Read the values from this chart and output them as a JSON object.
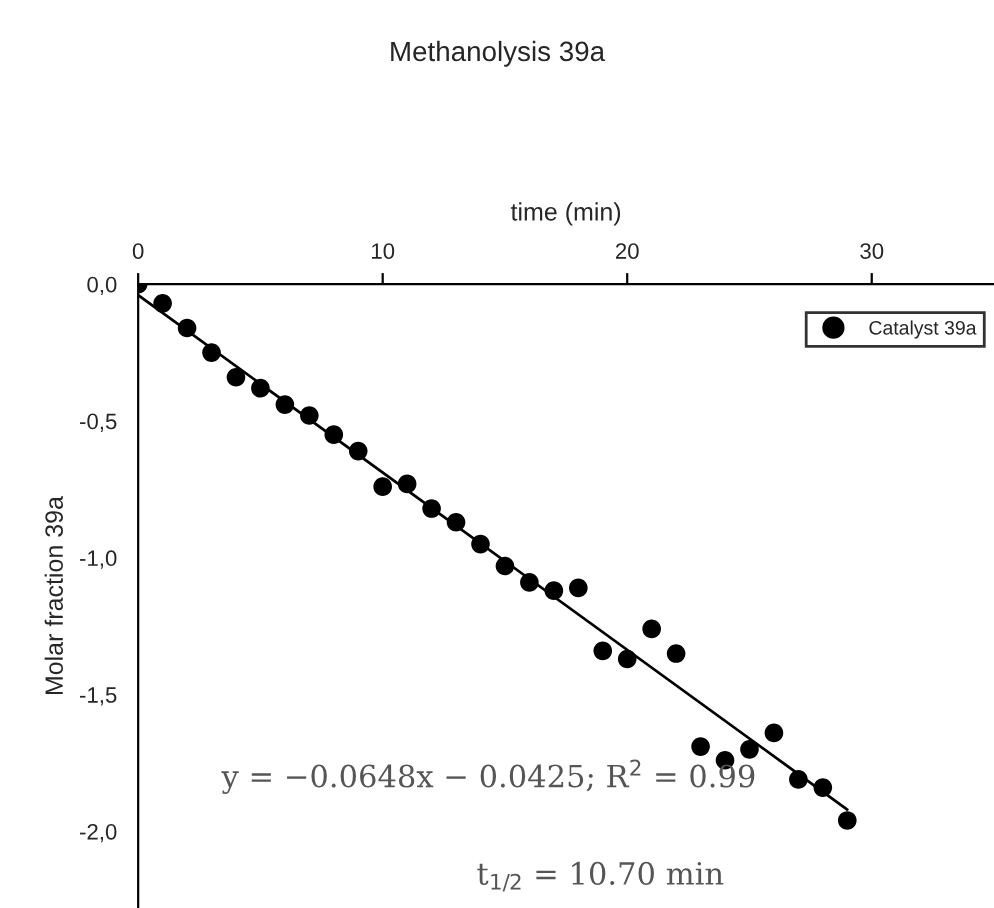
{
  "chart_data": {
    "type": "scatter",
    "title": "Methanolysis 39a",
    "xlabel": "time (min)",
    "ylabel": "Molar fraction 39a",
    "xlim": [
      0,
      35
    ],
    "xticks": [
      0,
      10,
      20,
      30
    ],
    "ylim": [
      -2.28,
      0
    ],
    "yticks": [
      {
        "value": 0,
        "label": "0,0"
      },
      {
        "value": -0.5,
        "label": "-0,5"
      },
      {
        "value": -1.0,
        "label": "-1,0"
      },
      {
        "value": -1.5,
        "label": "-1,5"
      },
      {
        "value": -2.0,
        "label": "-2,0"
      }
    ],
    "grid": false,
    "legend": "top right",
    "series": [
      {
        "name": "Catalyst 39a",
        "color": "#000000",
        "marker": "circle",
        "x": [
          0,
          1,
          2,
          3,
          4,
          5,
          6,
          7,
          8,
          9,
          10,
          11,
          12,
          13,
          14,
          15,
          16,
          17,
          18,
          19,
          20,
          21,
          22,
          23,
          24,
          25,
          26,
          27,
          28,
          29
        ],
        "values": [
          0.0,
          -0.07,
          -0.16,
          -0.25,
          -0.34,
          -0.38,
          -0.44,
          -0.48,
          -0.55,
          -0.61,
          -0.74,
          -0.73,
          -0.82,
          -0.87,
          -0.95,
          -1.03,
          -1.09,
          -1.12,
          -1.11,
          -1.34,
          -1.37,
          -1.26,
          -1.35,
          -1.69,
          -1.74,
          -1.7,
          -1.64,
          -1.81,
          -1.84,
          -1.96
        ]
      },
      {
        "type": "line",
        "color": "#000000",
        "x": [
          0,
          29
        ],
        "values": [
          -0.04,
          -1.92
        ]
      }
    ],
    "annotations": [
      "y = −0.0648x − 0.0425; R$^{2}$ = 0.99",
      "t$_{1/2}$ = 10.70 min"
    ]
  }
}
